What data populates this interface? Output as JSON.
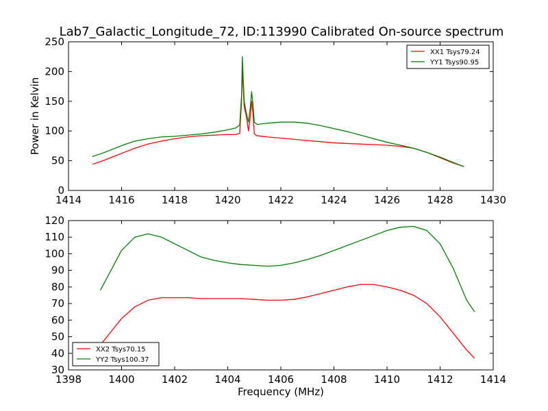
{
  "figure": {
    "title": "Lab7_Galactic_Longitude_72, ID:113990 Calibrated On-source spectrum"
  },
  "chart_data": [
    {
      "type": "line",
      "title": "Lab7_Galactic_Longitude_72, ID:113990 Calibrated On-source spectrum",
      "xlabel": "",
      "ylabel": "Power in Kelvin",
      "xlim": [
        1414,
        1430
      ],
      "ylim": [
        0,
        250
      ],
      "xticks": [
        1414,
        1416,
        1418,
        1420,
        1422,
        1424,
        1426,
        1428,
        1430
      ],
      "yticks": [
        0,
        50,
        100,
        150,
        200,
        250
      ],
      "grid": false,
      "legend_position": "top-right",
      "series": [
        {
          "name": "XX1 Tsys79.24",
          "color": "#ff0000",
          "points": [
            [
              1414.9,
              44
            ],
            [
              1415.3,
              50
            ],
            [
              1415.7,
              57
            ],
            [
              1416.1,
              64
            ],
            [
              1416.5,
              71
            ],
            [
              1417.0,
              78
            ],
            [
              1417.5,
              83
            ],
            [
              1418.0,
              87
            ],
            [
              1418.5,
              90
            ],
            [
              1419.0,
              92
            ],
            [
              1419.5,
              93
            ],
            [
              1420.0,
              94
            ],
            [
              1420.3,
              94
            ],
            [
              1420.45,
              96
            ],
            [
              1420.52,
              150
            ],
            [
              1420.55,
              210
            ],
            [
              1420.58,
              175
            ],
            [
              1420.62,
              140
            ],
            [
              1420.7,
              125
            ],
            [
              1420.78,
              100
            ],
            [
              1420.85,
              125
            ],
            [
              1420.9,
              150
            ],
            [
              1420.95,
              130
            ],
            [
              1421.0,
              95
            ],
            [
              1421.1,
              92
            ],
            [
              1421.5,
              90
            ],
            [
              1422.0,
              88
            ],
            [
              1422.5,
              86
            ],
            [
              1423.0,
              84
            ],
            [
              1423.5,
              82
            ],
            [
              1424.0,
              80
            ],
            [
              1424.5,
              79
            ],
            [
              1425.0,
              78
            ],
            [
              1425.5,
              77
            ],
            [
              1426.0,
              76
            ],
            [
              1426.5,
              74
            ],
            [
              1427.0,
              71
            ],
            [
              1427.5,
              64
            ],
            [
              1428.0,
              55
            ],
            [
              1428.5,
              46
            ],
            [
              1428.9,
              40
            ]
          ]
        },
        {
          "name": "YY1 Tsys90.95",
          "color": "#008000",
          "points": [
            [
              1414.9,
              57
            ],
            [
              1415.3,
              63
            ],
            [
              1415.7,
              70
            ],
            [
              1416.1,
              77
            ],
            [
              1416.5,
              83
            ],
            [
              1417.0,
              87
            ],
            [
              1417.5,
              90
            ],
            [
              1418.0,
              91
            ],
            [
              1418.5,
              93
            ],
            [
              1419.0,
              95
            ],
            [
              1419.5,
              98
            ],
            [
              1420.0,
              102
            ],
            [
              1420.3,
              105
            ],
            [
              1420.45,
              110
            ],
            [
              1420.52,
              160
            ],
            [
              1420.55,
              225
            ],
            [
              1420.58,
              190
            ],
            [
              1420.62,
              150
            ],
            [
              1420.7,
              130
            ],
            [
              1420.78,
              115
            ],
            [
              1420.85,
              140
            ],
            [
              1420.9,
              166
            ],
            [
              1420.95,
              145
            ],
            [
              1421.0,
              115
            ],
            [
              1421.1,
              111
            ],
            [
              1421.5,
              113
            ],
            [
              1422.0,
              115
            ],
            [
              1422.5,
              115
            ],
            [
              1423.0,
              113
            ],
            [
              1423.5,
              109
            ],
            [
              1424.0,
              104
            ],
            [
              1424.5,
              99
            ],
            [
              1425.0,
              93
            ],
            [
              1425.5,
              87
            ],
            [
              1426.0,
              81
            ],
            [
              1426.5,
              76
            ],
            [
              1427.0,
              71
            ],
            [
              1427.5,
              64
            ],
            [
              1428.0,
              56
            ],
            [
              1428.5,
              47
            ],
            [
              1428.9,
              40
            ]
          ]
        }
      ]
    },
    {
      "type": "line",
      "title": "",
      "xlabel": "Frequency (MHz)",
      "ylabel": "",
      "xlim": [
        1398,
        1414
      ],
      "ylim": [
        30,
        120
      ],
      "xticks": [
        1398,
        1400,
        1402,
        1404,
        1406,
        1408,
        1410,
        1412,
        1414
      ],
      "yticks": [
        30,
        40,
        50,
        60,
        70,
        80,
        90,
        100,
        110,
        120
      ],
      "grid": false,
      "legend_position": "bottom-left",
      "series": [
        {
          "name": "XX2 Tsys70.15",
          "color": "#ff0000",
          "points": [
            [
              1399.2,
              45
            ],
            [
              1399.5,
              51
            ],
            [
              1400.0,
              61
            ],
            [
              1400.5,
              68
            ],
            [
              1401.0,
              72
            ],
            [
              1401.5,
              73.5
            ],
            [
              1402.0,
              73.5
            ],
            [
              1402.5,
              73.5
            ],
            [
              1403.0,
              73
            ],
            [
              1403.5,
              73
            ],
            [
              1404.0,
              73
            ],
            [
              1404.5,
              73
            ],
            [
              1405.0,
              72.5
            ],
            [
              1405.5,
              72
            ],
            [
              1406.0,
              72
            ],
            [
              1406.5,
              72.5
            ],
            [
              1407.0,
              74
            ],
            [
              1407.5,
              76
            ],
            [
              1408.0,
              78
            ],
            [
              1408.5,
              80
            ],
            [
              1409.0,
              81.5
            ],
            [
              1409.5,
              81.5
            ],
            [
              1410.0,
              80
            ],
            [
              1410.5,
              78
            ],
            [
              1411.0,
              75
            ],
            [
              1411.5,
              70
            ],
            [
              1412.0,
              62
            ],
            [
              1412.5,
              52
            ],
            [
              1413.0,
              42
            ],
            [
              1413.3,
              37
            ]
          ]
        },
        {
          "name": "YY2 Tsys100.37",
          "color": "#008000",
          "points": [
            [
              1399.2,
              78
            ],
            [
              1399.5,
              87
            ],
            [
              1400.0,
              102
            ],
            [
              1400.5,
              110
            ],
            [
              1401.0,
              112
            ],
            [
              1401.5,
              110
            ],
            [
              1402.0,
              106
            ],
            [
              1402.5,
              102
            ],
            [
              1403.0,
              98
            ],
            [
              1403.5,
              96
            ],
            [
              1404.0,
              94.5
            ],
            [
              1404.5,
              93.5
            ],
            [
              1405.0,
              93
            ],
            [
              1405.5,
              92.5
            ],
            [
              1406.0,
              93
            ],
            [
              1406.5,
              94.5
            ],
            [
              1407.0,
              96.5
            ],
            [
              1407.5,
              99
            ],
            [
              1408.0,
              102
            ],
            [
              1408.5,
              105
            ],
            [
              1409.0,
              108
            ],
            [
              1409.5,
              111
            ],
            [
              1410.0,
              114
            ],
            [
              1410.5,
              116
            ],
            [
              1411.0,
              116.5
            ],
            [
              1411.5,
              114
            ],
            [
              1412.0,
              106
            ],
            [
              1412.5,
              91
            ],
            [
              1413.0,
              72
            ],
            [
              1413.3,
              65
            ]
          ]
        }
      ]
    }
  ]
}
